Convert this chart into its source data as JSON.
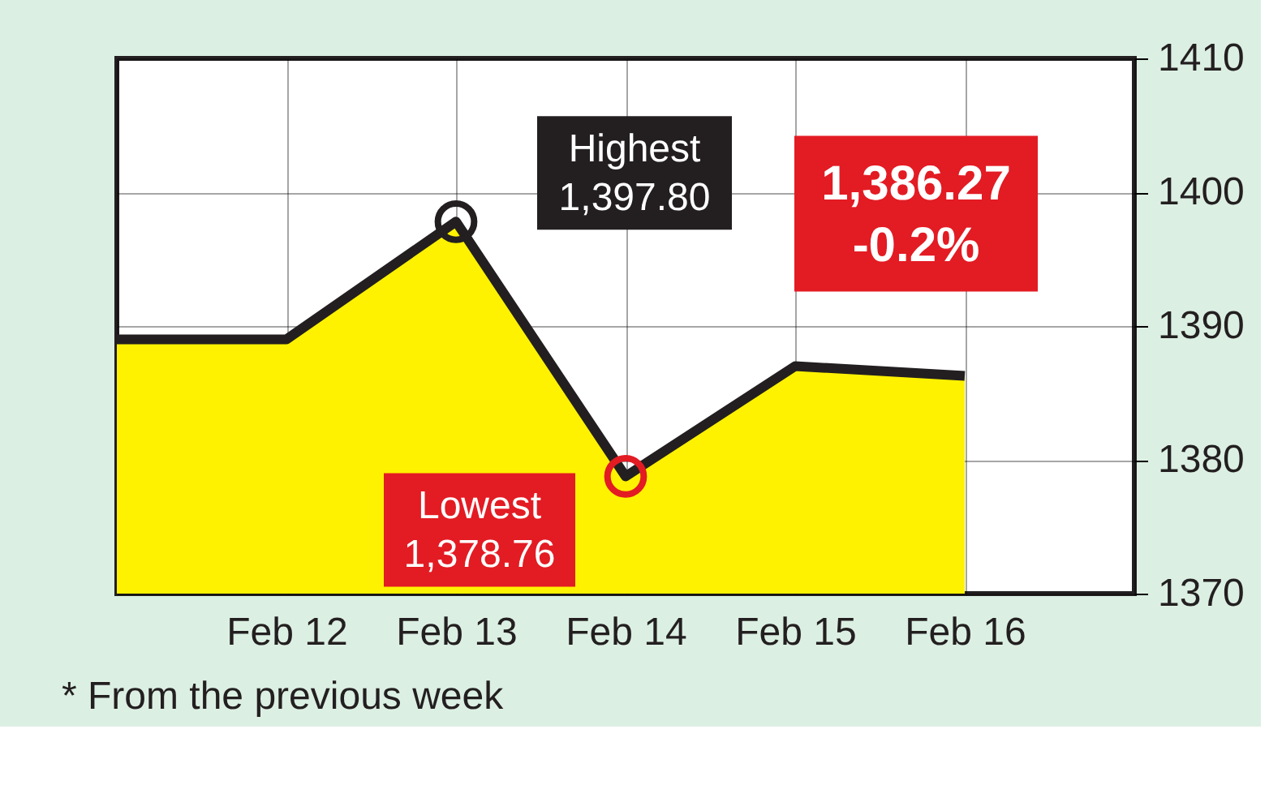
{
  "chart_data": {
    "type": "area",
    "categories": [
      null,
      "Feb 12",
      "Feb 13",
      "Feb 14",
      "Feb 15",
      "Feb 16",
      null
    ],
    "series": [
      {
        "color": "#fff200",
        "values": [
          1389,
          1389,
          1397.8,
          1378.76,
          1387,
          1386.27,
          null
        ]
      }
    ],
    "ylim": [
      1370,
      1410
    ],
    "yticks": [
      1370,
      1380,
      1390,
      1400,
      1410
    ],
    "grid": true,
    "annotations": [
      {
        "text": "Highest\n1,397.80",
        "x": "Feb 13",
        "y": 1397.8
      },
      {
        "text": "Lowest\n1,378.76",
        "x": "Feb 14",
        "y": 1378.76
      },
      {
        "text": "1,386.27\n-0.2%",
        "x": "Feb 16",
        "y": 1386.27
      },
      "* From the previous week"
    ]
  }
}
